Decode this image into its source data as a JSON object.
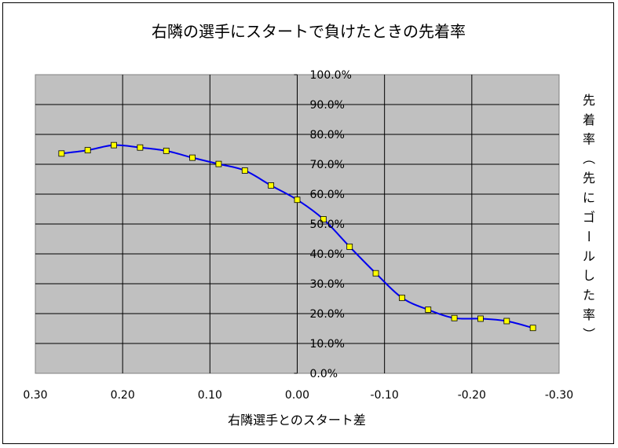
{
  "chart_data": {
    "type": "line",
    "title": "右隣の選手にスタートで負けたときの先着率",
    "xlabel": "右隣選手とのスタート差",
    "ylabel": "先着率（先にゴールした率）",
    "x_ticks": [
      "0.30",
      "0.20",
      "0.10",
      "0.00",
      "-0.10",
      "-0.20",
      "-0.30"
    ],
    "y_ticks": [
      "0.0%",
      "10.0%",
      "20.0%",
      "30.0%",
      "40.0%",
      "50.0%",
      "60.0%",
      "70.0%",
      "80.0%",
      "90.0%",
      "100.0%"
    ],
    "xlim": [
      0.3,
      -0.3
    ],
    "ylim": [
      0,
      100
    ],
    "grid": true,
    "series": [
      {
        "color": "#0000ee",
        "marker_color": "#ffff00",
        "x": [
          0.27,
          0.24,
          0.21,
          0.18,
          0.15,
          0.12,
          0.09,
          0.06,
          0.03,
          0.0,
          -0.03,
          -0.06,
          -0.09,
          -0.12,
          -0.15,
          -0.18,
          -0.21,
          -0.24,
          -0.27
        ],
        "y": [
          73.6,
          74.7,
          76.4,
          75.6,
          74.5,
          72.2,
          70.1,
          67.9,
          62.9,
          58.1,
          51.6,
          42.4,
          33.5,
          25.3,
          21.3,
          18.5,
          18.3,
          17.5,
          15.2
        ]
      }
    ]
  }
}
